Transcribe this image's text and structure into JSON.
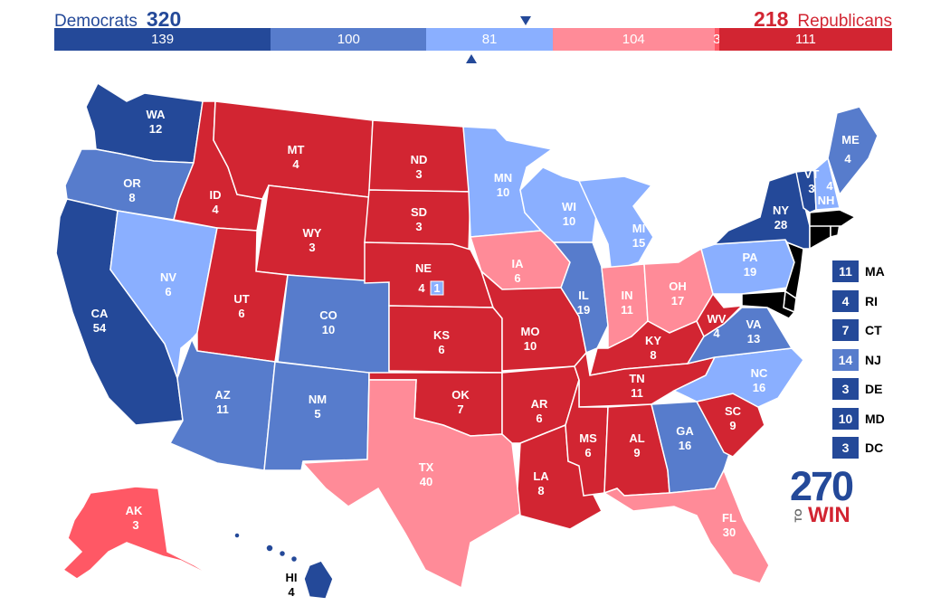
{
  "header": {
    "dem_name": "Democrats",
    "dem_total": "320",
    "rep_total": "218",
    "rep_name": "Republicans"
  },
  "colors": {
    "safe_dem": "#244999",
    "likely_dem": "#577CCC",
    "lean_dem": "#8AAFFF",
    "lean_rep": "#FF8B98",
    "likely_rep": "#FF5865",
    "safe_rep": "#D22532"
  },
  "bar": {
    "segments": [
      {
        "label": "139",
        "value": 139,
        "color": "#244999"
      },
      {
        "label": "100",
        "value": 100,
        "color": "#577CCC"
      },
      {
        "label": "81",
        "value": 81,
        "color": "#8AAFFF"
      },
      {
        "label": "104",
        "value": 104,
        "color": "#FF8B98"
      },
      {
        "label": "3",
        "value": 3,
        "color": "#FF5865"
      },
      {
        "label": "111",
        "value": 111,
        "color": "#D22532"
      }
    ]
  },
  "states": {
    "WA": {
      "abbr": "WA",
      "ev": "12",
      "color": "#244999"
    },
    "OR": {
      "abbr": "OR",
      "ev": "8",
      "color": "#577CCC"
    },
    "CA": {
      "abbr": "CA",
      "ev": "54",
      "color": "#244999"
    },
    "NV": {
      "abbr": "NV",
      "ev": "6",
      "color": "#8AAFFF"
    },
    "ID": {
      "abbr": "ID",
      "ev": "4",
      "color": "#D22532"
    },
    "MT": {
      "abbr": "MT",
      "ev": "4",
      "color": "#D22532"
    },
    "WY": {
      "abbr": "WY",
      "ev": "3",
      "color": "#D22532"
    },
    "UT": {
      "abbr": "UT",
      "ev": "6",
      "color": "#D22532"
    },
    "CO": {
      "abbr": "CO",
      "ev": "10",
      "color": "#577CCC"
    },
    "AZ": {
      "abbr": "AZ",
      "ev": "11",
      "color": "#577CCC"
    },
    "NM": {
      "abbr": "NM",
      "ev": "5",
      "color": "#577CCC"
    },
    "ND": {
      "abbr": "ND",
      "ev": "3",
      "color": "#D22532"
    },
    "SD": {
      "abbr": "SD",
      "ev": "3",
      "color": "#D22532"
    },
    "NE": {
      "abbr": "NE",
      "ev": "4",
      "color": "#D22532"
    },
    "NE2": {
      "ev": "1",
      "color": "#8AAFFF"
    },
    "KS": {
      "abbr": "KS",
      "ev": "6",
      "color": "#D22532"
    },
    "OK": {
      "abbr": "OK",
      "ev": "7",
      "color": "#D22532"
    },
    "TX": {
      "abbr": "TX",
      "ev": "40",
      "color": "#FF8B98"
    },
    "MN": {
      "abbr": "MN",
      "ev": "10",
      "color": "#8AAFFF"
    },
    "IA": {
      "abbr": "IA",
      "ev": "6",
      "color": "#FF8B98"
    },
    "MO": {
      "abbr": "MO",
      "ev": "10",
      "color": "#D22532"
    },
    "AR": {
      "abbr": "AR",
      "ev": "6",
      "color": "#D22532"
    },
    "LA": {
      "abbr": "LA",
      "ev": "8",
      "color": "#D22532"
    },
    "WI": {
      "abbr": "WI",
      "ev": "10",
      "color": "#8AAFFF"
    },
    "IL": {
      "abbr": "IL",
      "ev": "19",
      "color": "#577CCC"
    },
    "MI": {
      "abbr": "MI",
      "ev": "15",
      "color": "#8AAFFF"
    },
    "IN": {
      "abbr": "IN",
      "ev": "11",
      "color": "#FF8B98"
    },
    "OH": {
      "abbr": "OH",
      "ev": "17",
      "color": "#FF8B98"
    },
    "KY": {
      "abbr": "KY",
      "ev": "8",
      "color": "#D22532"
    },
    "TN": {
      "abbr": "TN",
      "ev": "11",
      "color": "#D22532"
    },
    "MS": {
      "abbr": "MS",
      "ev": "6",
      "color": "#D22532"
    },
    "AL": {
      "abbr": "AL",
      "ev": "9",
      "color": "#D22532"
    },
    "GA": {
      "abbr": "GA",
      "ev": "16",
      "color": "#577CCC"
    },
    "FL": {
      "abbr": "FL",
      "ev": "30",
      "color": "#FF8B98"
    },
    "SC": {
      "abbr": "SC",
      "ev": "9",
      "color": "#D22532"
    },
    "NC": {
      "abbr": "NC",
      "ev": "16",
      "color": "#8AAFFF"
    },
    "VA": {
      "abbr": "VA",
      "ev": "13",
      "color": "#577CCC"
    },
    "WV": {
      "abbr": "WV",
      "ev": "4",
      "color": "#D22532"
    },
    "PA": {
      "abbr": "PA",
      "ev": "19",
      "color": "#8AAFFF"
    },
    "NY": {
      "abbr": "NY",
      "ev": "28",
      "color": "#244999"
    },
    "VT": {
      "abbr": "VT",
      "ev": "3",
      "color": "#244999"
    },
    "NH": {
      "abbr": "NH",
      "ev": "4",
      "color": "#8AAFFF"
    },
    "ME": {
      "abbr": "ME",
      "ev": "4",
      "color": "#577CCC"
    },
    "AK": {
      "abbr": "AK",
      "ev": "3",
      "color": "#FF5865"
    },
    "HI": {
      "abbr": "HI",
      "ev": "4",
      "color": "#244999"
    }
  },
  "small_states": [
    {
      "ev": "11",
      "abbr": "MA",
      "color": "#244999"
    },
    {
      "ev": "4",
      "abbr": "RI",
      "color": "#244999"
    },
    {
      "ev": "7",
      "abbr": "CT",
      "color": "#244999"
    },
    {
      "ev": "14",
      "abbr": "NJ",
      "color": "#577CCC"
    },
    {
      "ev": "3",
      "abbr": "DE",
      "color": "#244999"
    },
    {
      "ev": "10",
      "abbr": "MD",
      "color": "#244999"
    },
    {
      "ev": "3",
      "abbr": "DC",
      "color": "#244999"
    }
  ],
  "logo": {
    "number": "270",
    "to": "TO",
    "win": "WIN"
  }
}
